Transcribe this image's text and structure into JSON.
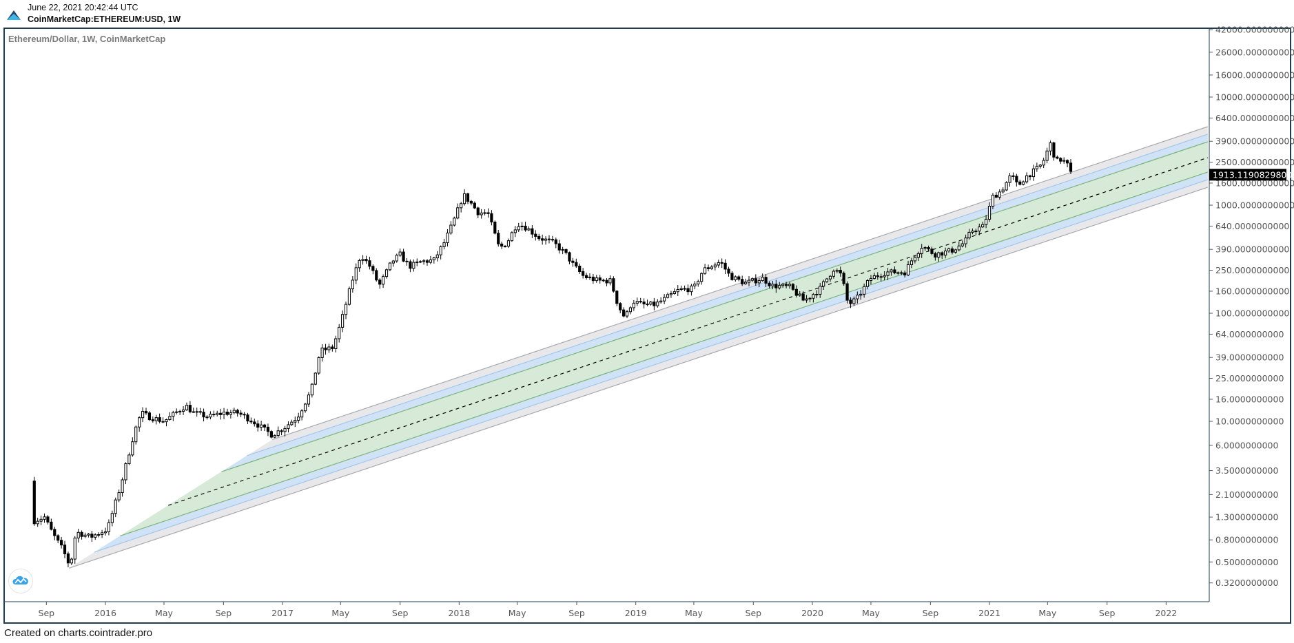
{
  "header": {
    "timestamp": "June 22, 2021 20:42:44 UTC",
    "symbol": "CoinMarketCap:ETHEREUM:USD, 1W",
    "logo_icon": "cointrader-mountain-icon"
  },
  "footer": {
    "text": "Created on charts.cointrader.pro"
  },
  "floating_button": {
    "icon": "chart-cloud-icon"
  },
  "colors": {
    "up_body": "#ffffff",
    "down_body": "#000000",
    "candle_outline": "#000000",
    "outer_band_fill": "#e8e8eb",
    "outer_band_line": "#a9a9ad",
    "mid_band_fill": "#cfe2f6",
    "mid_band_line": "#a6c6ec",
    "inner_band_fill": "#d7e9d7",
    "inner_band_line": "#7cb47e",
    "frame": "#213a4e",
    "last_price_bg": "#000000"
  },
  "chart_data": {
    "type": "candlestick",
    "title": "Ethereum/Dollar, 1W, CoinMarketCap",
    "y_scale": "log",
    "ylim": [
      0.28,
      45000
    ],
    "xlim": [
      "2015-07-10",
      "2022-03-28"
    ],
    "grid": false,
    "last_price": "1913.1190829800",
    "price_ticks": [
      "42000.0000000000",
      "26000.0000000000",
      "16000.0000000000",
      "10000.0000000000",
      "6400.0000000000",
      "3900.0000000000",
      "2500.0000000000",
      "1600.0000000000",
      "1000.0000000000",
      "640.0000000000",
      "390.0000000000",
      "250.0000000000",
      "160.0000000000",
      "100.0000000000",
      "64.0000000000",
      "39.0000000000",
      "25.0000000000",
      "16.0000000000",
      "10.0000000000",
      "6.0000000000",
      "3.5000000000",
      "2.1000000000",
      "1.3000000000",
      "0.8000000000",
      "0.5000000000",
      "0.3200000000"
    ],
    "time_ticks": [
      {
        "label": "Sep",
        "date": "2015-09-01"
      },
      {
        "label": "2016",
        "date": "2016-01-01"
      },
      {
        "label": "May",
        "date": "2016-05-01"
      },
      {
        "label": "Sep",
        "date": "2016-09-01"
      },
      {
        "label": "2017",
        "date": "2017-01-01"
      },
      {
        "label": "May",
        "date": "2017-05-01"
      },
      {
        "label": "Sep",
        "date": "2017-09-01"
      },
      {
        "label": "2018",
        "date": "2018-01-01"
      },
      {
        "label": "May",
        "date": "2018-05-01"
      },
      {
        "label": "Sep",
        "date": "2018-09-01"
      },
      {
        "label": "2019",
        "date": "2019-01-01"
      },
      {
        "label": "May",
        "date": "2019-05-01"
      },
      {
        "label": "Sep",
        "date": "2019-09-01"
      },
      {
        "label": "2020",
        "date": "2020-01-01"
      },
      {
        "label": "May",
        "date": "2020-05-01"
      },
      {
        "label": "Sep",
        "date": "2020-09-01"
      },
      {
        "label": "2021",
        "date": "2021-01-01"
      },
      {
        "label": "May",
        "date": "2021-05-01"
      },
      {
        "label": "Sep",
        "date": "2021-09-01"
      },
      {
        "label": "2022",
        "date": "2022-01-01"
      }
    ],
    "first_open": 2.8,
    "weekly_close_anchors": [
      [
        "2015-08-07",
        1.2
      ],
      [
        "2015-08-28",
        1.3
      ],
      [
        "2015-09-15",
        0.9
      ],
      [
        "2015-10-05",
        0.65
      ],
      [
        "2015-10-20",
        0.45
      ],
      [
        "2015-11-01",
        0.95
      ],
      [
        "2015-12-01",
        0.85
      ],
      [
        "2016-01-05",
        1.0
      ],
      [
        "2016-02-01",
        2.5
      ],
      [
        "2016-03-01",
        8
      ],
      [
        "2016-03-15",
        12
      ],
      [
        "2016-04-01",
        11
      ],
      [
        "2016-05-01",
        10
      ],
      [
        "2016-06-15",
        14
      ],
      [
        "2016-07-01",
        12
      ],
      [
        "2016-08-01",
        11
      ],
      [
        "2016-09-01",
        12
      ],
      [
        "2016-10-01",
        12
      ],
      [
        "2016-11-01",
        10
      ],
      [
        "2016-12-10",
        7.5
      ],
      [
        "2017-01-01",
        8.5
      ],
      [
        "2017-02-01",
        11
      ],
      [
        "2017-03-01",
        19
      ],
      [
        "2017-03-20",
        45
      ],
      [
        "2017-04-15",
        48
      ],
      [
        "2017-05-01",
        80
      ],
      [
        "2017-05-25",
        200
      ],
      [
        "2017-06-12",
        350
      ],
      [
        "2017-07-01",
        270
      ],
      [
        "2017-07-20",
        180
      ],
      [
        "2017-08-15",
        300
      ],
      [
        "2017-09-01",
        350
      ],
      [
        "2017-09-20",
        270
      ],
      [
        "2017-10-15",
        300
      ],
      [
        "2017-11-10",
        310
      ],
      [
        "2017-12-01",
        450
      ],
      [
        "2017-12-20",
        700
      ],
      [
        "2018-01-10",
        1250
      ],
      [
        "2018-01-25",
        1050
      ],
      [
        "2018-02-10",
        850
      ],
      [
        "2018-03-01",
        850
      ],
      [
        "2018-03-25",
        400
      ],
      [
        "2018-04-10",
        450
      ],
      [
        "2018-05-01",
        680
      ],
      [
        "2018-05-20",
        620
      ],
      [
        "2018-06-15",
        500
      ],
      [
        "2018-07-15",
        450
      ],
      [
        "2018-08-10",
        350
      ],
      [
        "2018-08-25",
        280
      ],
      [
        "2018-09-15",
        220
      ],
      [
        "2018-10-15",
        200
      ],
      [
        "2018-11-10",
        200
      ],
      [
        "2018-11-25",
        120
      ],
      [
        "2018-12-10",
        90
      ],
      [
        "2018-12-25",
        130
      ],
      [
        "2019-01-15",
        120
      ],
      [
        "2019-02-10",
        120
      ],
      [
        "2019-03-01",
        135
      ],
      [
        "2019-04-01",
        165
      ],
      [
        "2019-05-01",
        170
      ],
      [
        "2019-05-20",
        250
      ],
      [
        "2019-06-25",
        300
      ],
      [
        "2019-07-15",
        220
      ],
      [
        "2019-08-15",
        190
      ],
      [
        "2019-09-20",
        210
      ],
      [
        "2019-10-10",
        180
      ],
      [
        "2019-11-15",
        175
      ],
      [
        "2019-12-15",
        130
      ],
      [
        "2020-01-15",
        165
      ],
      [
        "2020-02-15",
        260
      ],
      [
        "2020-03-01",
        225
      ],
      [
        "2020-03-15",
        120
      ],
      [
        "2020-04-01",
        135
      ],
      [
        "2020-04-30",
        210
      ],
      [
        "2020-06-01",
        240
      ],
      [
        "2020-07-10",
        240
      ],
      [
        "2020-07-28",
        330
      ],
      [
        "2020-08-15",
        420
      ],
      [
        "2020-09-10",
        350
      ],
      [
        "2020-10-15",
        380
      ],
      [
        "2020-11-10",
        450
      ],
      [
        "2020-11-25",
        580
      ],
      [
        "2020-12-20",
        640
      ],
      [
        "2021-01-08",
        1200
      ],
      [
        "2021-01-25",
        1350
      ],
      [
        "2021-02-15",
        1900
      ],
      [
        "2021-03-01",
        1500
      ],
      [
        "2021-03-15",
        1800
      ],
      [
        "2021-04-05",
        2100
      ],
      [
        "2021-04-20",
        2400
      ],
      [
        "2021-05-03",
        3400
      ],
      [
        "2021-05-10",
        3900
      ],
      [
        "2021-05-17",
        2400
      ],
      [
        "2021-05-24",
        2700
      ],
      [
        "2021-06-07",
        2500
      ],
      [
        "2021-06-14",
        2250
      ],
      [
        "2021-06-21",
        1913
      ]
    ],
    "channel": {
      "growth_log10_per_year": 0.547,
      "end_date": "2022-03-28",
      "fan_origin": {
        "date": "2015-10-16",
        "price": 0.433
      },
      "fan_log10_per_year": 1.034,
      "lines_price_at_end": {
        "outer_top": 5322,
        "mid_top": 4530,
        "inner_top": 3855,
        "median": 2750,
        "inner_bottom": 2023,
        "mid_bottom": 1720,
        "outer_bottom": 1464
      }
    }
  }
}
